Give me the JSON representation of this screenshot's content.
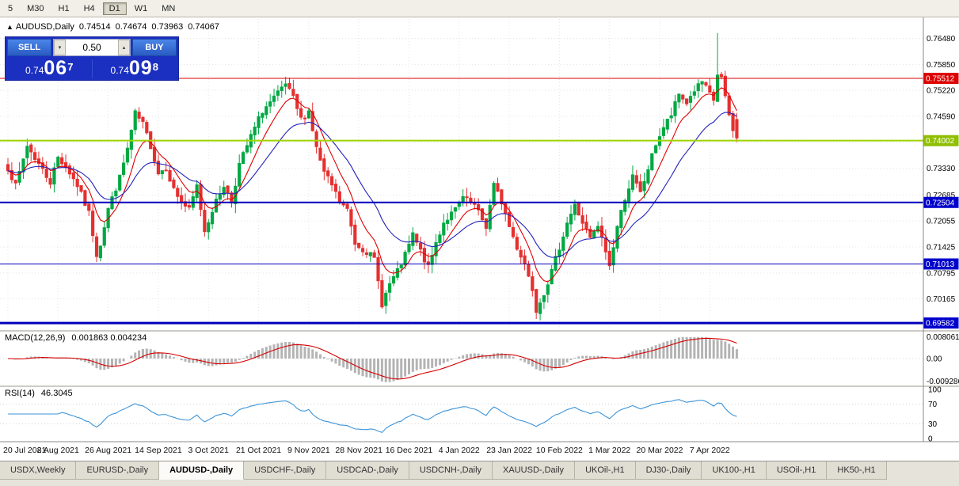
{
  "toolbar": {
    "timeframes": [
      {
        "label": "5",
        "active": false
      },
      {
        "label": "M30",
        "active": false
      },
      {
        "label": "H1",
        "active": false
      },
      {
        "label": "H4",
        "active": false
      },
      {
        "label": "D1",
        "active": true
      },
      {
        "label": "W1",
        "active": false
      },
      {
        "label": "MN",
        "active": false
      }
    ]
  },
  "symbol_line": {
    "arrow": "▲",
    "symbol": "AUDUSD,Daily",
    "open": "0.74514",
    "high": "0.74674",
    "low": "0.73963",
    "close": "0.74067"
  },
  "one_click": {
    "sell_label": "SELL",
    "buy_label": "BUY",
    "volume": "0.50",
    "spin_down": "▾",
    "spin_up": "▴",
    "sell_small": "0.74",
    "sell_big": "06",
    "sell_sup": "7",
    "buy_small": "0.74",
    "buy_big": "09",
    "buy_sup": "8"
  },
  "chart_data": {
    "type": "candlestick",
    "title": "AUDUSD Daily",
    "n_candles": 190,
    "seed": 7,
    "candle_up_color": "#00a843",
    "candle_down_color": "#e53030",
    "price_axis": {
      "min": 0.6943,
      "max": 0.7695,
      "ticks": [
        0.7648,
        0.7585,
        0.7522,
        0.7459,
        0.7396,
        0.7333,
        0.72685,
        0.72055,
        0.71425,
        0.70795,
        0.70165
      ]
    },
    "x_labels": [
      "20 Jul 2021",
      "8 Aug 2021",
      "26 Aug 2021",
      "14 Sep 2021",
      "3 Oct 2021",
      "21 Oct 2021",
      "9 Nov 2021",
      "28 Nov 2021",
      "16 Dec 2021",
      "4 Jan 2022",
      "23 Jan 2022",
      "10 Feb 2022",
      "1 Mar 2022",
      "20 Mar 2022",
      "7 Apr 2022"
    ],
    "x_label_step": 13,
    "close_anchors": [
      [
        0,
        0.7335
      ],
      [
        2,
        0.729
      ],
      [
        5,
        0.7388
      ],
      [
        8,
        0.7344
      ],
      [
        11,
        0.73
      ],
      [
        13,
        0.736
      ],
      [
        15,
        0.7338
      ],
      [
        18,
        0.7292
      ],
      [
        21,
        0.7225
      ],
      [
        23,
        0.7125
      ],
      [
        24,
        0.715
      ],
      [
        26,
        0.7235
      ],
      [
        29,
        0.731
      ],
      [
        31,
        0.738
      ],
      [
        33,
        0.7465
      ],
      [
        35,
        0.744
      ],
      [
        37,
        0.7388
      ],
      [
        39,
        0.7322
      ],
      [
        41,
        0.7335
      ],
      [
        43,
        0.7282
      ],
      [
        45,
        0.7252
      ],
      [
        47,
        0.7232
      ],
      [
        49,
        0.729
      ],
      [
        51,
        0.7182
      ],
      [
        53,
        0.7232
      ],
      [
        56,
        0.7292
      ],
      [
        58,
        0.7252
      ],
      [
        60,
        0.7342
      ],
      [
        63,
        0.741
      ],
      [
        66,
        0.7472
      ],
      [
        69,
        0.7502
      ],
      [
        72,
        0.7536
      ],
      [
        74,
        0.7502
      ],
      [
        76,
        0.7452
      ],
      [
        78,
        0.7472
      ],
      [
        80,
        0.7382
      ],
      [
        82,
        0.7322
      ],
      [
        84,
        0.7292
      ],
      [
        86,
        0.7252
      ],
      [
        88,
        0.7232
      ],
      [
        90,
        0.7152
      ],
      [
        93,
        0.7132
      ],
      [
        95,
        0.7112
      ],
      [
        97,
        0.7005
      ],
      [
        99,
        0.7052
      ],
      [
        101,
        0.7082
      ],
      [
        103,
        0.7122
      ],
      [
        105,
        0.7172
      ],
      [
        107,
        0.7132
      ],
      [
        109,
        0.7092
      ],
      [
        111,
        0.7152
      ],
      [
        113,
        0.7202
      ],
      [
        116,
        0.7232
      ],
      [
        118,
        0.7262
      ],
      [
        121,
        0.7242
      ],
      [
        124,
        0.7192
      ],
      [
        126,
        0.7292
      ],
      [
        128,
        0.7252
      ],
      [
        130,
        0.7192
      ],
      [
        132,
        0.7142
      ],
      [
        134,
        0.7102
      ],
      [
        136,
        0.7042
      ],
      [
        137,
        0.6992
      ],
      [
        139,
        0.7032
      ],
      [
        141,
        0.7082
      ],
      [
        143,
        0.7142
      ],
      [
        145,
        0.7202
      ],
      [
        147,
        0.7242
      ],
      [
        149,
        0.7202
      ],
      [
        151,
        0.7162
      ],
      [
        153,
        0.7192
      ],
      [
        155,
        0.7132
      ],
      [
        156,
        0.7096
      ],
      [
        158,
        0.7192
      ],
      [
        160,
        0.7262
      ],
      [
        162,
        0.7312
      ],
      [
        164,
        0.7272
      ],
      [
        166,
        0.7332
      ],
      [
        168,
        0.7392
      ],
      [
        170,
        0.7432
      ],
      [
        172,
        0.7462
      ],
      [
        174,
        0.7512
      ],
      [
        176,
        0.7492
      ],
      [
        178,
        0.7522
      ],
      [
        180,
        0.7542
      ],
      [
        182,
        0.7512
      ],
      [
        183,
        0.7498
      ],
      [
        184,
        0.756
      ],
      [
        185,
        0.7552
      ],
      [
        186,
        0.7502
      ],
      [
        187,
        0.7462
      ],
      [
        188,
        0.7422
      ],
      [
        189,
        0.74067
      ]
    ],
    "special_bars": {
      "23": {
        "low": 0.7106
      },
      "33": {
        "high": 0.7478
      },
      "72": {
        "high": 0.7555
      },
      "97": {
        "low": 0.6993
      },
      "137": {
        "low": 0.6968
      },
      "184": {
        "high": 0.7661
      }
    },
    "last_bar": {
      "open": 0.74514,
      "high": 0.74674,
      "low": 0.73963,
      "close": 0.74067
    },
    "levels": [
      {
        "price": 0.75512,
        "label": "0.75512",
        "color": "#dd0000",
        "badge": "#dd0000",
        "width": 1
      },
      {
        "price": 0.74002,
        "label": "0.74002",
        "color": "#9fd400",
        "badge": "#8fbf00",
        "width": 2
      },
      {
        "price": 0.72504,
        "label": "0.72504",
        "color": "#0000bb",
        "badge": "#0000cc",
        "width": 2
      },
      {
        "price": 0.71013,
        "label": "0.71013",
        "color": "#0000bb",
        "badge": "#0000cc",
        "width": 1
      },
      {
        "price": 0.69582,
        "label": "0.69582",
        "color": "#0000bb",
        "badge": "#0000cc",
        "width": 3
      }
    ],
    "ma": {
      "fast_period": 8,
      "slow_period": 21,
      "fast_color": "#e00000",
      "slow_color": "#2222bb"
    },
    "indicators": {
      "macd": {
        "label": "MACD(12,26,9)",
        "current": "0.001863 0.004234",
        "params": [
          12,
          26,
          9
        ],
        "axis_labels": [
          "0.008061",
          "0.00",
          "-0.009286"
        ],
        "hist_color": "#b4b4b4",
        "signal_color": "#d40000"
      },
      "rsi": {
        "label": "RSI(14)",
        "current": "46.3045",
        "period": 14,
        "axis_labels": [
          "100",
          "70",
          "30",
          "0"
        ],
        "levels": [
          70,
          30
        ],
        "color": "#3d94d8"
      }
    }
  },
  "tabs": [
    {
      "label": "USDX,Weekly",
      "active": false
    },
    {
      "label": "EURUSD-,Daily",
      "active": false
    },
    {
      "label": "AUDUSD-,Daily",
      "active": true
    },
    {
      "label": "USDCHF-,Daily",
      "active": false
    },
    {
      "label": "USDCAD-,Daily",
      "active": false
    },
    {
      "label": "USDCNH-,Daily",
      "active": false
    },
    {
      "label": "XAUUSD-,Daily",
      "active": false
    },
    {
      "label": "UKOil-,H1",
      "active": false
    },
    {
      "label": "DJ30-,Daily",
      "active": false
    },
    {
      "label": "UK100-,H1",
      "active": false
    },
    {
      "label": "USOil-,H1",
      "active": false
    },
    {
      "label": "HK50-,H1",
      "active": false
    }
  ]
}
